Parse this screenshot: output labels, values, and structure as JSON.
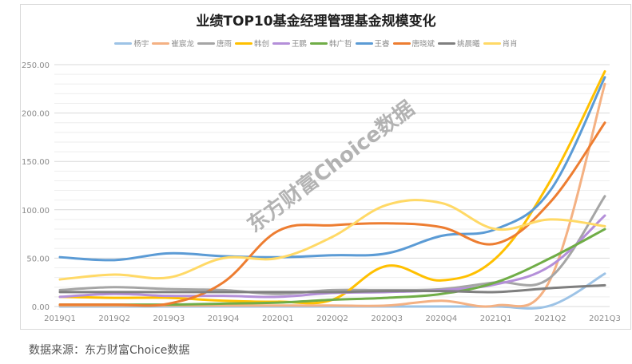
{
  "chart_data": {
    "type": "line",
    "title": "业绩TOP10基金经理管理基金规模变化",
    "xlabel": "",
    "ylabel": "",
    "ylim": [
      0,
      250
    ],
    "yticks": [
      "0.00",
      "50.00",
      "100.00",
      "150.00",
      "200.00",
      "250.00"
    ],
    "grid": true,
    "legend_position": "top",
    "categories": [
      "2019Q1",
      "2019Q2",
      "2019Q3",
      "2019Q4",
      "2020Q1",
      "2020Q2",
      "2020Q3",
      "2020Q4",
      "2021Q1",
      "2021Q2",
      "2021Q3"
    ],
    "series": [
      {
        "name": "杨宇",
        "color": "#9dc3e6",
        "values": [
          0,
          0,
          0,
          0,
          0,
          0,
          0,
          0,
          0,
          1,
          34
        ]
      },
      {
        "name": "崔宸龙",
        "color": "#f4b183",
        "values": [
          1,
          1,
          1,
          1,
          1,
          1,
          1,
          6,
          1,
          28,
          230
        ]
      },
      {
        "name": "唐雨",
        "color": "#a5a5a5",
        "values": [
          17,
          20,
          18,
          17,
          13,
          17,
          17,
          18,
          25,
          30,
          114
        ]
      },
      {
        "name": "韩创",
        "color": "#ffc000",
        "values": [
          10,
          9,
          9,
          6,
          5,
          7,
          42,
          27,
          50,
          130,
          243
        ]
      },
      {
        "name": "王鹏",
        "color": "#b48fd9",
        "values": [
          10,
          13,
          11,
          11,
          10,
          14,
          15,
          17,
          23,
          42,
          94
        ]
      },
      {
        "name": "韩广哲",
        "color": "#70ad47",
        "values": [
          2,
          2,
          2,
          3,
          4,
          7,
          9,
          13,
          25,
          50,
          80
        ]
      },
      {
        "name": "王睿",
        "color": "#5b9bd5",
        "values": [
          51,
          48,
          55,
          52,
          51,
          53,
          55,
          73,
          80,
          120,
          237
        ]
      },
      {
        "name": "唐晓斌",
        "color": "#ed7d31",
        "values": [
          2,
          2,
          3,
          25,
          78,
          84,
          86,
          82,
          65,
          108,
          190
        ]
      },
      {
        "name": "姚晨曦",
        "color": "#7f7f7f",
        "values": [
          15,
          15,
          15,
          15,
          15,
          15,
          16,
          16,
          15,
          19,
          22
        ]
      },
      {
        "name": "肖肖",
        "color": "#ffd966",
        "values": [
          28,
          33,
          30,
          50,
          50,
          72,
          105,
          107,
          80,
          90,
          83
        ]
      }
    ]
  },
  "watermark": "东方财富Choice数据",
  "source": "数据来源：东方财富Choice数据"
}
